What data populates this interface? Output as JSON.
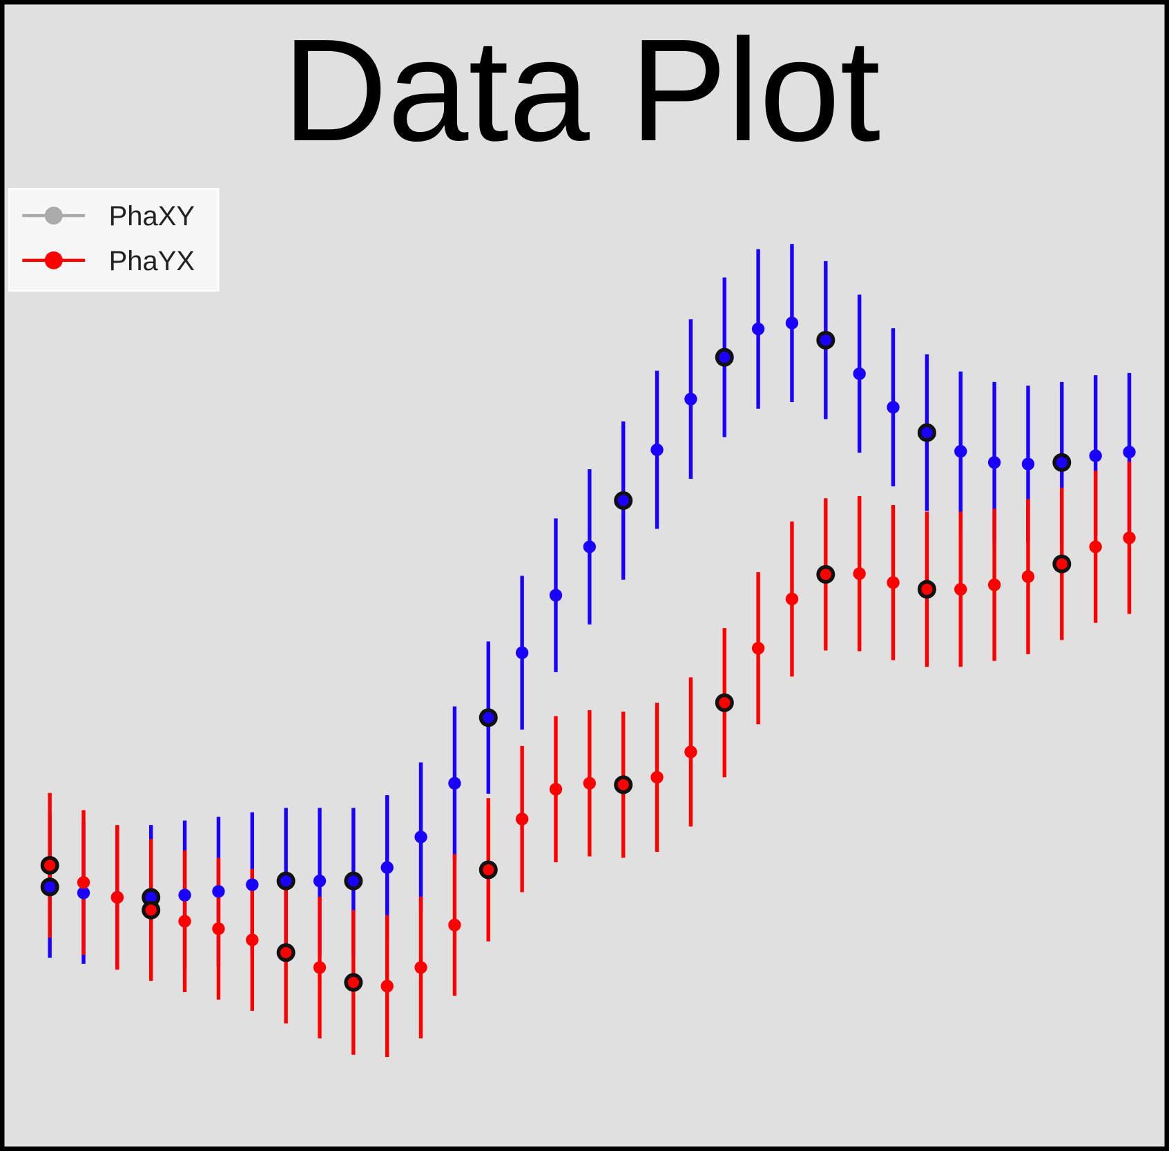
{
  "chart_data": {
    "type": "errorbar",
    "title": "Data Plot",
    "x": [
      0,
      1,
      2,
      3,
      4,
      5,
      6,
      7,
      8,
      9,
      10,
      11,
      12,
      13,
      14,
      15,
      16,
      17,
      18,
      19,
      20,
      21,
      22,
      23,
      24,
      25,
      26,
      27,
      28,
      29,
      30,
      31,
      32
    ],
    "xlim": [
      -1.3,
      33
    ],
    "ylim": [
      0,
      1527
    ],
    "highlight": [
      0,
      3,
      7,
      9,
      13,
      17,
      20,
      23,
      26,
      30
    ],
    "legend": "upper left",
    "series": [
      {
        "name": "PhaXY",
        "color": "#aaaaaa",
        "point_color": "#1a00ff",
        "values": [
          346,
          338,
          332,
          332,
          335,
          340,
          349,
          354,
          354,
          354,
          372,
          413,
          485,
          573,
          660,
          737,
          802,
          864,
          932,
          1000,
          1056,
          1094,
          1102,
          1079,
          1034,
          989,
          955,
          930,
          915,
          913,
          915,
          924,
          929
        ],
        "errors": [
          95,
          95,
          95,
          97,
          100,
          100,
          97,
          98,
          98,
          98,
          97,
          100,
          103,
          102,
          103,
          103,
          104,
          106,
          106,
          107,
          107,
          107,
          106,
          106,
          106,
          106,
          105,
          107,
          108,
          105,
          108,
          108,
          106
        ]
      },
      {
        "name": "PhaYX",
        "color": "#ff0000",
        "point_color": "#ff0000",
        "values": [
          375,
          352,
          332,
          315,
          300,
          290,
          275,
          258,
          238,
          218,
          213,
          238,
          295,
          369,
          437,
          477,
          485,
          483,
          493,
          527,
          593,
          666,
          732,
          765,
          766,
          754,
          745,
          745,
          751,
          762,
          779,
          802,
          814
        ],
        "errors": [
          97,
          97,
          97,
          95,
          95,
          95,
          95,
          95,
          95,
          97,
          95,
          95,
          95,
          96,
          98,
          98,
          98,
          98,
          100,
          100,
          100,
          102,
          104,
          102,
          104,
          104,
          104,
          104,
          102,
          104,
          102,
          102,
          102
        ]
      }
    ]
  }
}
